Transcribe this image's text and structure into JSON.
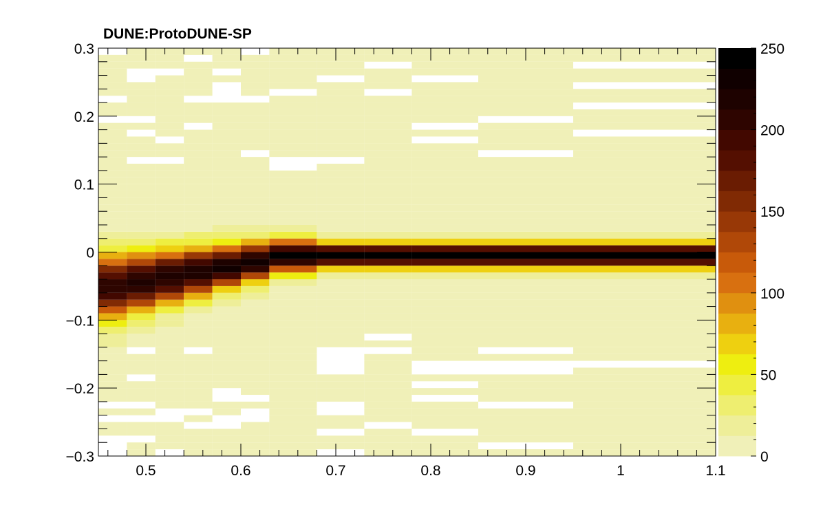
{
  "chart_data": {
    "type": "heatmap",
    "title": "DUNE:ProtoDUNE-SP",
    "xlabel": "",
    "ylabel": "",
    "xlim": [
      0.45,
      1.1
    ],
    "ylim": [
      -0.3,
      0.3
    ],
    "zlim": [
      0,
      250
    ],
    "x_ticks": [
      0.5,
      0.6,
      0.7,
      0.8,
      0.9,
      1,
      1.1
    ],
    "x_tick_labels": [
      "0.5",
      "0.6",
      "0.7",
      "0.8",
      "0.9",
      "1",
      "1.1"
    ],
    "y_ticks": [
      -0.3,
      -0.2,
      -0.1,
      0,
      0.1,
      0.2,
      0.3
    ],
    "y_tick_labels": [
      "−0.3",
      "−0.2",
      "−0.1",
      "0",
      "0.1",
      "0.2",
      "0.3"
    ],
    "z_ticks": [
      0,
      50,
      100,
      150,
      200,
      250
    ],
    "z_tick_labels": [
      "0",
      "50",
      "100",
      "150",
      "200",
      "250"
    ],
    "x_bin_edges": [
      0.45,
      0.48,
      0.51,
      0.54,
      0.57,
      0.6,
      0.63,
      0.68,
      0.73,
      0.78,
      0.85,
      0.95,
      1.1
    ],
    "palette": [
      "#f0f0b8",
      "#eeee99",
      "#eeee70",
      "#eeee40",
      "#eeee10",
      "#eed010",
      "#e8b010",
      "#e09010",
      "#d87010",
      "#c85a0a",
      "#b04808",
      "#983806",
      "#802a04",
      "#6a1c02",
      "#540f01",
      "#420800",
      "#2e0500",
      "#1e0200",
      "#100000",
      "#000000"
    ],
    "grid": false,
    "legend": "colorbar-right"
  }
}
